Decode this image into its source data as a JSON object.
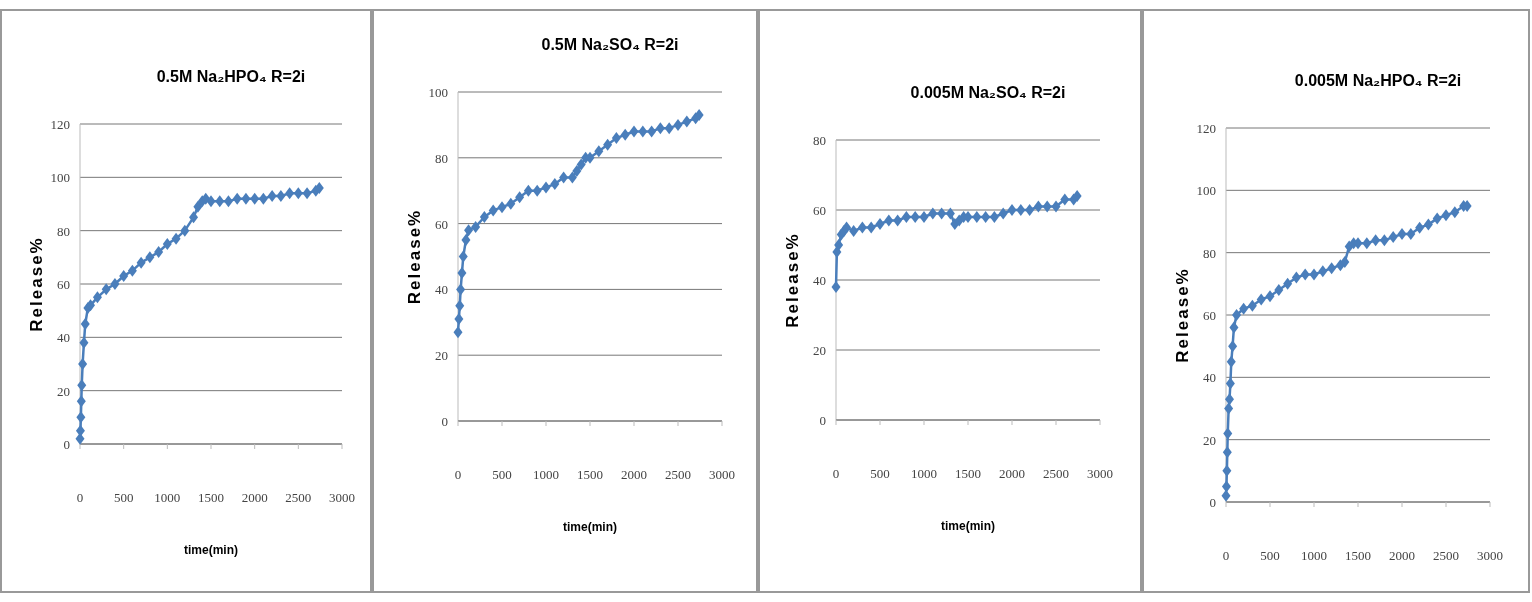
{
  "chart_data": [
    {
      "type": "line",
      "title": "0.5M Na₂HPO₄ R=2i",
      "xlabel": "time(min)",
      "ylabel": "Release%",
      "xlim": [
        0,
        3000
      ],
      "xticks": [
        0,
        500,
        1000,
        1500,
        2000,
        2500,
        3000
      ],
      "ylim": [
        0,
        120
      ],
      "yticks": [
        0,
        20,
        40,
        60,
        80,
        100,
        120
      ],
      "grid": "y",
      "marker": "diamond",
      "series": [
        {
          "color": "#4a7ebb",
          "x": [
            0,
            5,
            10,
            15,
            20,
            30,
            45,
            60,
            90,
            120,
            200,
            300,
            400,
            500,
            600,
            700,
            800,
            900,
            1000,
            1100,
            1200,
            1300,
            1350,
            1400,
            1440,
            1500,
            1600,
            1700,
            1800,
            1900,
            2000,
            2100,
            2200,
            2300,
            2400,
            2500,
            2600,
            2700,
            2740
          ],
          "values": [
            2,
            5,
            10,
            16,
            22,
            30,
            38,
            45,
            51,
            52,
            55,
            58,
            60,
            63,
            65,
            68,
            70,
            72,
            75,
            77,
            80,
            85,
            89,
            91,
            92,
            91,
            91,
            91,
            92,
            92,
            92,
            92,
            93,
            93,
            94,
            94,
            94,
            95,
            96
          ]
        }
      ]
    },
    {
      "type": "line",
      "title": "0.5M Na₂SO₄ R=2i",
      "xlabel": "time(min)",
      "ylabel": "Release%",
      "xlim": [
        0,
        3000
      ],
      "xticks": [
        0,
        500,
        1000,
        1500,
        2000,
        2500,
        3000
      ],
      "ylim": [
        0,
        100
      ],
      "yticks": [
        0,
        20,
        40,
        60,
        80,
        100
      ],
      "grid": "y",
      "marker": "diamond",
      "series": [
        {
          "color": "#4a7ebb",
          "x": [
            0,
            10,
            20,
            30,
            45,
            60,
            90,
            120,
            200,
            300,
            400,
            500,
            600,
            700,
            800,
            900,
            1000,
            1100,
            1200,
            1300,
            1350,
            1400,
            1450,
            1500,
            1600,
            1700,
            1800,
            1900,
            2000,
            2100,
            2200,
            2300,
            2400,
            2500,
            2600,
            2700,
            2740
          ],
          "values": [
            27,
            31,
            35,
            40,
            45,
            50,
            55,
            58,
            59,
            62,
            64,
            65,
            66,
            68,
            70,
            70,
            71,
            72,
            74,
            74,
            76,
            78,
            80,
            80,
            82,
            84,
            86,
            87,
            88,
            88,
            88,
            89,
            89,
            90,
            91,
            92,
            93
          ]
        }
      ]
    },
    {
      "type": "line",
      "title": "0.005M Na₂SO₄ R=2i",
      "xlabel": "time(min)",
      "ylabel": "Release%",
      "xlim": [
        0,
        3000
      ],
      "xticks": [
        0,
        500,
        1000,
        1500,
        2000,
        2500,
        3000
      ],
      "ylim": [
        0,
        80
      ],
      "yticks": [
        0,
        20,
        40,
        60,
        80
      ],
      "grid": "y",
      "marker": "diamond",
      "series": [
        {
          "color": "#4a7ebb",
          "x": [
            0,
            10,
            30,
            60,
            90,
            120,
            200,
            300,
            400,
            500,
            600,
            700,
            800,
            900,
            1000,
            1100,
            1200,
            1300,
            1350,
            1400,
            1450,
            1500,
            1600,
            1700,
            1800,
            1900,
            2000,
            2100,
            2200,
            2300,
            2400,
            2500,
            2600,
            2700,
            2740
          ],
          "values": [
            38,
            48,
            50,
            53,
            54,
            55,
            54,
            55,
            55,
            56,
            57,
            57,
            58,
            58,
            58,
            59,
            59,
            59,
            56,
            57,
            58,
            58,
            58,
            58,
            58,
            59,
            60,
            60,
            60,
            61,
            61,
            61,
            63,
            63,
            64
          ]
        }
      ]
    },
    {
      "type": "line",
      "title": "0.005M Na₂HPO₄ R=2i",
      "ylabel": "Release%",
      "xlim": [
        0,
        3000
      ],
      "xticks": [
        0,
        500,
        1000,
        1500,
        2000,
        2500,
        3000
      ],
      "ylim": [
        0,
        120
      ],
      "yticks": [
        0,
        20,
        40,
        60,
        80,
        100,
        120
      ],
      "grid": "y",
      "marker": "diamond",
      "series": [
        {
          "color": "#4a7ebb",
          "x": [
            0,
            5,
            10,
            15,
            20,
            30,
            40,
            50,
            60,
            75,
            90,
            120,
            200,
            300,
            400,
            500,
            600,
            700,
            800,
            900,
            1000,
            1100,
            1200,
            1300,
            1350,
            1400,
            1450,
            1500,
            1600,
            1700,
            1800,
            1900,
            2000,
            2100,
            2200,
            2300,
            2400,
            2500,
            2600,
            2700,
            2740
          ],
          "values": [
            2,
            5,
            10,
            16,
            22,
            30,
            33,
            38,
            45,
            50,
            56,
            60,
            62,
            63,
            65,
            66,
            68,
            70,
            72,
            73,
            73,
            74,
            75,
            76,
            77,
            82,
            83,
            83,
            83,
            84,
            84,
            85,
            86,
            86,
            88,
            89,
            91,
            92,
            93,
            95,
            95
          ]
        }
      ]
    }
  ]
}
